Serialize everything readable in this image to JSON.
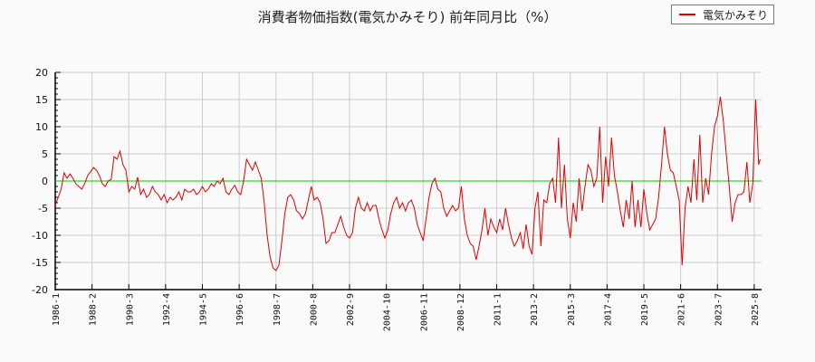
{
  "title": "消費者物価指数(電気かみそり) 前年同月比（%）",
  "legend": {
    "label": "電気かみそり",
    "color": "#e00000"
  },
  "colors": {
    "series": "#e00000",
    "zero_line": "#00cc00",
    "grid": "#cccccc",
    "axis": "#000000"
  },
  "chart_data": {
    "type": "line",
    "title": "消費者物価指数(電気かみそり) 前年同月比（%）",
    "xlabel": "",
    "ylabel": "",
    "ylim": [
      -20,
      20
    ],
    "yticks": [
      20,
      15,
      10,
      5,
      0,
      -5,
      -10,
      -15,
      -20
    ],
    "xticks": [
      "1986-1",
      "1988-2",
      "1990-3",
      "1992-4",
      "1994-5",
      "1996-6",
      "1998-7",
      "2000-8",
      "2002-9",
      "2004-10",
      "2006-11",
      "2008-12",
      "2011-1",
      "2013-2",
      "2015-3",
      "2017-4",
      "2019-5",
      "2021-6",
      "2023-7",
      "2025-8"
    ],
    "grid": true,
    "legend_position": "top-right",
    "series": [
      {
        "name": "電気かみそり",
        "points": [
          [
            "1986-1",
            -4.5
          ],
          [
            "1986-3",
            -3
          ],
          [
            "1986-5",
            -1.5
          ],
          [
            "1986-7",
            1.5
          ],
          [
            "1986-9",
            0.5
          ],
          [
            "1986-11",
            1.3
          ],
          [
            "1987-1",
            0.5
          ],
          [
            "1987-3",
            -0.5
          ],
          [
            "1987-5",
            -1.0
          ],
          [
            "1987-7",
            -1.5
          ],
          [
            "1987-9",
            -0.5
          ],
          [
            "1987-11",
            1.0
          ],
          [
            "1988-1",
            1.7
          ],
          [
            "1988-3",
            2.5
          ],
          [
            "1988-5",
            2.0
          ],
          [
            "1988-7",
            1.0
          ],
          [
            "1988-9",
            -0.5
          ],
          [
            "1988-11",
            -1.0
          ],
          [
            "1989-1",
            0
          ],
          [
            "1989-3",
            0.3
          ],
          [
            "1989-5",
            4.5
          ],
          [
            "1989-7",
            4.0
          ],
          [
            "1989-9",
            5.5
          ],
          [
            "1989-11",
            3.0
          ],
          [
            "1990-1",
            2.0
          ],
          [
            "1990-3",
            -2.0
          ],
          [
            "1990-5",
            -1.0
          ],
          [
            "1990-7",
            -1.5
          ],
          [
            "1990-9",
            0.7
          ],
          [
            "1990-11",
            -2.5
          ],
          [
            "1991-1",
            -1.5
          ],
          [
            "1991-3",
            -3.0
          ],
          [
            "1991-5",
            -2.5
          ],
          [
            "1991-7",
            -1.0
          ],
          [
            "1991-9",
            -2.0
          ],
          [
            "1991-11",
            -2.5
          ],
          [
            "1992-1",
            -3.5
          ],
          [
            "1992-3",
            -2.5
          ],
          [
            "1992-5",
            -4.0
          ],
          [
            "1992-7",
            -3.0
          ],
          [
            "1992-9",
            -3.5
          ],
          [
            "1992-11",
            -3.0
          ],
          [
            "1993-1",
            -2.0
          ],
          [
            "1993-3",
            -3.5
          ],
          [
            "1993-5",
            -1.5
          ],
          [
            "1993-7",
            -2.0
          ],
          [
            "1993-9",
            -2.0
          ],
          [
            "1993-11",
            -1.5
          ],
          [
            "1994-1",
            -2.5
          ],
          [
            "1994-3",
            -2.0
          ],
          [
            "1994-5",
            -1.0
          ],
          [
            "1994-7",
            -2.0
          ],
          [
            "1994-9",
            -1.5
          ],
          [
            "1994-11",
            -0.5
          ],
          [
            "1995-1",
            -1.0
          ],
          [
            "1995-3",
            0
          ],
          [
            "1995-5",
            -0.5
          ],
          [
            "1995-7",
            0.5
          ],
          [
            "1995-9",
            -2.0
          ],
          [
            "1995-11",
            -2.5
          ],
          [
            "1996-1",
            -1.5
          ],
          [
            "1996-3",
            -0.8
          ],
          [
            "1996-5",
            -2.0
          ],
          [
            "1996-7",
            -2.5
          ],
          [
            "1996-9",
            0.0
          ],
          [
            "1996-11",
            4.0
          ],
          [
            "1997-1",
            3.0
          ],
          [
            "1997-3",
            2.0
          ],
          [
            "1997-5",
            3.5
          ],
          [
            "1997-7",
            2.0
          ],
          [
            "1997-9",
            0.5
          ],
          [
            "1997-11",
            -4.0
          ],
          [
            "1998-1",
            -10.0
          ],
          [
            "1998-3",
            -14.0
          ],
          [
            "1998-5",
            -16.0
          ],
          [
            "1998-7",
            -16.5
          ],
          [
            "1998-9",
            -15.5
          ],
          [
            "1998-11",
            -11.0
          ],
          [
            "1999-1",
            -6.0
          ],
          [
            "1999-3",
            -3.0
          ],
          [
            "1999-5",
            -2.5
          ],
          [
            "1999-7",
            -3.5
          ],
          [
            "1999-9",
            -5.5
          ],
          [
            "1999-11",
            -6.0
          ],
          [
            "2000-1",
            -7.0
          ],
          [
            "2000-3",
            -6.0
          ],
          [
            "2000-5",
            -3.5
          ],
          [
            "2000-7",
            -1.0
          ],
          [
            "2000-9",
            -3.5
          ],
          [
            "2000-11",
            -3.0
          ],
          [
            "2001-1",
            -4.0
          ],
          [
            "2001-3",
            -7.0
          ],
          [
            "2001-5",
            -11.5
          ],
          [
            "2001-7",
            -11.0
          ],
          [
            "2001-9",
            -9.5
          ],
          [
            "2001-11",
            -9.5
          ],
          [
            "2002-1",
            -8.0
          ],
          [
            "2002-3",
            -6.5
          ],
          [
            "2002-5",
            -8.5
          ],
          [
            "2002-7",
            -10.0
          ],
          [
            "2002-9",
            -10.5
          ],
          [
            "2002-11",
            -9.5
          ],
          [
            "2003-1",
            -5.0
          ],
          [
            "2003-3",
            -3.0
          ],
          [
            "2003-5",
            -5.0
          ],
          [
            "2003-7",
            -5.5
          ],
          [
            "2003-9",
            -4.0
          ],
          [
            "2003-11",
            -5.5
          ],
          [
            "2004-1",
            -4.5
          ],
          [
            "2004-3",
            -4.5
          ],
          [
            "2004-5",
            -7.0
          ],
          [
            "2004-7",
            -9.0
          ],
          [
            "2004-9",
            -10.5
          ],
          [
            "2004-11",
            -9.0
          ],
          [
            "2005-1",
            -6.0
          ],
          [
            "2005-3",
            -4.0
          ],
          [
            "2005-5",
            -3.0
          ],
          [
            "2005-7",
            -5.0
          ],
          [
            "2005-9",
            -4.0
          ],
          [
            "2005-11",
            -5.5
          ],
          [
            "2006-1",
            -4.0
          ],
          [
            "2006-3",
            -3.5
          ],
          [
            "2006-5",
            -5.0
          ],
          [
            "2006-7",
            -8.0
          ],
          [
            "2006-9",
            -9.5
          ],
          [
            "2006-11",
            -11.0
          ],
          [
            "2007-1",
            -7.0
          ],
          [
            "2007-3",
            -3.0
          ],
          [
            "2007-5",
            -0.5
          ],
          [
            "2007-7",
            0.5
          ],
          [
            "2007-9",
            -1.5
          ],
          [
            "2007-11",
            -2.0
          ],
          [
            "2008-1",
            -5.0
          ],
          [
            "2008-3",
            -6.5
          ],
          [
            "2008-5",
            -5.5
          ],
          [
            "2008-7",
            -4.5
          ],
          [
            "2008-9",
            -5.5
          ],
          [
            "2008-11",
            -5.0
          ],
          [
            "2009-1",
            -1.0
          ],
          [
            "2009-3",
            -7.0
          ],
          [
            "2009-5",
            -10.0
          ],
          [
            "2009-7",
            -11.5
          ],
          [
            "2009-9",
            -12.0
          ],
          [
            "2009-11",
            -14.5
          ],
          [
            "2010-1",
            -12.0
          ],
          [
            "2010-3",
            -9.0
          ],
          [
            "2010-5",
            -5.0
          ],
          [
            "2010-7",
            -10.0
          ],
          [
            "2010-9",
            -7.0
          ],
          [
            "2010-11",
            -8.5
          ],
          [
            "2011-1",
            -9.5
          ],
          [
            "2011-3",
            -7.0
          ],
          [
            "2011-5",
            -9.0
          ],
          [
            "2011-7",
            -5.0
          ],
          [
            "2011-9",
            -8.0
          ],
          [
            "2011-11",
            -10.5
          ],
          [
            "2012-1",
            -12.0
          ],
          [
            "2012-3",
            -11.0
          ],
          [
            "2012-5",
            -9.5
          ],
          [
            "2012-7",
            -12.5
          ],
          [
            "2012-9",
            -8.0
          ],
          [
            "2012-11",
            -12.0
          ],
          [
            "2013-1",
            -13.5
          ],
          [
            "2013-3",
            -5.0
          ],
          [
            "2013-5",
            -2.0
          ],
          [
            "2013-7",
            -12.0
          ],
          [
            "2013-9",
            -3.5
          ],
          [
            "2013-11",
            -4.0
          ],
          [
            "2014-1",
            -0.5
          ],
          [
            "2014-3",
            0.5
          ],
          [
            "2014-5",
            -4.0
          ],
          [
            "2014-7",
            8.0
          ],
          [
            "2014-9",
            -5.0
          ],
          [
            "2014-11",
            3.0
          ],
          [
            "2015-1",
            -7.0
          ],
          [
            "2015-3",
            -10.5
          ],
          [
            "2015-5",
            -4.0
          ],
          [
            "2015-7",
            -7.5
          ],
          [
            "2015-9",
            0.5
          ],
          [
            "2015-11",
            -5.5
          ],
          [
            "2016-1",
            -1.0
          ],
          [
            "2016-3",
            3.0
          ],
          [
            "2016-5",
            2.0
          ],
          [
            "2016-7",
            -1.0
          ],
          [
            "2016-9",
            0.5
          ],
          [
            "2016-11",
            10.0
          ],
          [
            "2017-1",
            -4.0
          ],
          [
            "2017-3",
            4.5
          ],
          [
            "2017-5",
            -1.0
          ],
          [
            "2017-7",
            8.0
          ],
          [
            "2017-9",
            1.0
          ],
          [
            "2017-11",
            -2.0
          ],
          [
            "2018-1",
            -5.5
          ],
          [
            "2018-3",
            -8.5
          ],
          [
            "2018-5",
            -3.5
          ],
          [
            "2018-7",
            -7.0
          ],
          [
            "2018-9",
            0.0
          ],
          [
            "2018-11",
            -8.5
          ],
          [
            "2019-1",
            -3.5
          ],
          [
            "2019-3",
            -8.5
          ],
          [
            "2019-5",
            -1.5
          ],
          [
            "2019-7",
            -6.0
          ],
          [
            "2019-9",
            -9.0
          ],
          [
            "2019-11",
            -8.0
          ],
          [
            "2020-1",
            -7.0
          ],
          [
            "2020-3",
            -3.0
          ],
          [
            "2020-5",
            3.0
          ],
          [
            "2020-7",
            10.0
          ],
          [
            "2020-9",
            5.0
          ],
          [
            "2020-11",
            2.0
          ],
          [
            "2021-1",
            1.5
          ],
          [
            "2021-3",
            -1.0
          ],
          [
            "2021-5",
            -3.5
          ],
          [
            "2021-7",
            -15.5
          ],
          [
            "2021-9",
            -5.0
          ],
          [
            "2021-11",
            -1.0
          ],
          [
            "2022-1",
            -4.0
          ],
          [
            "2022-3",
            4.0
          ],
          [
            "2022-5",
            -3.5
          ],
          [
            "2022-7",
            8.5
          ],
          [
            "2022-9",
            -4.0
          ],
          [
            "2022-11",
            0.5
          ],
          [
            "2023-1",
            -2.5
          ],
          [
            "2023-3",
            5.0
          ],
          [
            "2023-5",
            10.0
          ],
          [
            "2023-7",
            12.0
          ],
          [
            "2023-9",
            15.5
          ],
          [
            "2023-11",
            11.0
          ],
          [
            "2024-1",
            5.0
          ],
          [
            "2024-3",
            -1.0
          ],
          [
            "2024-5",
            -7.5
          ],
          [
            "2024-7",
            -4.0
          ],
          [
            "2024-9",
            -2.5
          ],
          [
            "2024-11",
            -2.5
          ],
          [
            "2025-1",
            -2.0
          ],
          [
            "2025-3",
            3.5
          ],
          [
            "2025-5",
            -4.0
          ],
          [
            "2025-7",
            -0.5
          ],
          [
            "2025-9",
            15.0
          ],
          [
            "2025-11",
            3.0
          ],
          [
            "2025-12",
            4.0
          ]
        ]
      },
      {
        "name": "zero-line",
        "values": [
          0
        ]
      }
    ]
  }
}
